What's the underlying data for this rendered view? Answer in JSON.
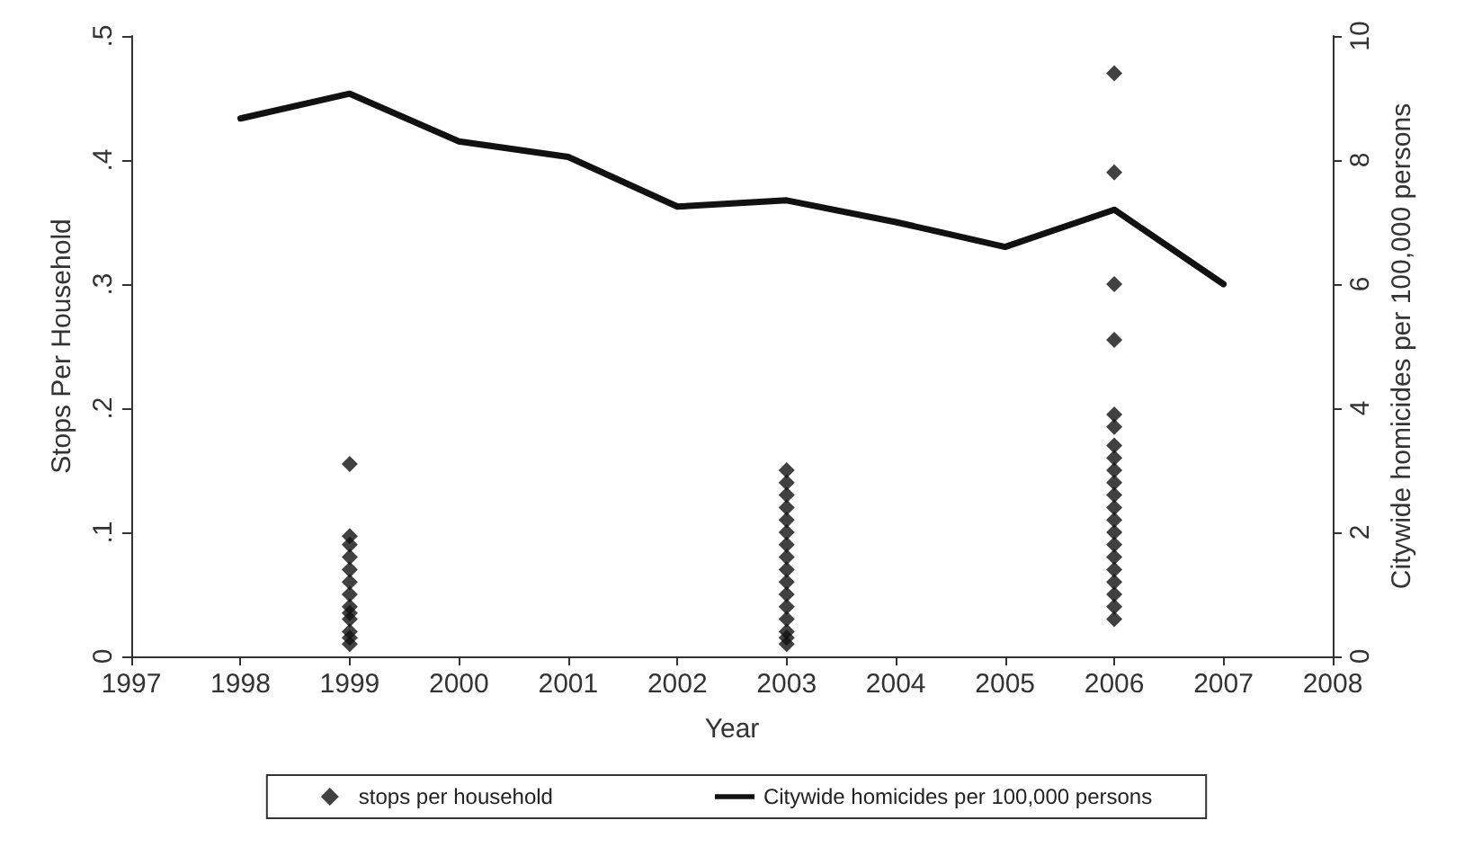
{
  "chart_data": {
    "type": "scatter",
    "xlabel": "Year",
    "ylabel": "Stops Per Household",
    "y2label": "Citywide homicides per 100,000 persons",
    "xlim": [
      1997,
      2008
    ],
    "xticks": [
      1997,
      1998,
      1999,
      2000,
      2001,
      2002,
      2003,
      2004,
      2005,
      2006,
      2007,
      2008
    ],
    "ylim": [
      0,
      0.5
    ],
    "yticks": [
      0,
      {
        "value": 0.1,
        "label": ".1"
      },
      {
        "value": 0.2,
        "label": ".2"
      },
      {
        "value": 0.3,
        "label": ".3"
      },
      {
        "value": 0.4,
        "label": ".4"
      },
      {
        "value": 0.5,
        "label": ".5"
      }
    ],
    "y2lim": [
      0,
      10
    ],
    "y2ticks": [
      0,
      2,
      4,
      6,
      8,
      10
    ],
    "grid": false,
    "legend": "bottom",
    "series": [
      {
        "name": "stops per household",
        "type": "scatter",
        "marker": "diamond",
        "color": "#111111",
        "x": [
          1999,
          1999,
          1999,
          1999,
          1999,
          1999,
          1999,
          1999,
          1999,
          1999,
          1999,
          1999,
          1999,
          2003,
          2003,
          2003,
          2003,
          2003,
          2003,
          2003,
          2003,
          2003,
          2003,
          2003,
          2003,
          2003,
          2003,
          2003,
          2003,
          2006,
          2006,
          2006,
          2006,
          2006,
          2006,
          2006,
          2006,
          2006,
          2006,
          2006,
          2006,
          2006,
          2006,
          2006,
          2006,
          2006,
          2006,
          2006,
          2006,
          2006
        ],
        "values": [
          0.155,
          0.097,
          0.09,
          0.08,
          0.07,
          0.06,
          0.05,
          0.04,
          0.035,
          0.03,
          0.02,
          0.015,
          0.01,
          0.15,
          0.14,
          0.13,
          0.12,
          0.11,
          0.1,
          0.09,
          0.08,
          0.07,
          0.06,
          0.05,
          0.04,
          0.03,
          0.02,
          0.015,
          0.01,
          0.47,
          0.39,
          0.3,
          0.255,
          0.195,
          0.185,
          0.17,
          0.16,
          0.15,
          0.14,
          0.13,
          0.12,
          0.11,
          0.1,
          0.09,
          0.08,
          0.07,
          0.06,
          0.05,
          0.04,
          0.03
        ]
      },
      {
        "name": "Citywide homicides per 100,000 persons",
        "type": "line",
        "axis": "y2",
        "marker": "none",
        "line_style": "solid",
        "color": "#111111",
        "x": [
          1998,
          1999,
          2000,
          2001,
          2002,
          2003,
          2004,
          2005,
          2006,
          2007
        ],
        "values": [
          8.67,
          9.07,
          8.3,
          8.05,
          7.25,
          7.35,
          7.0,
          6.6,
          7.2,
          6.0
        ]
      }
    ]
  }
}
